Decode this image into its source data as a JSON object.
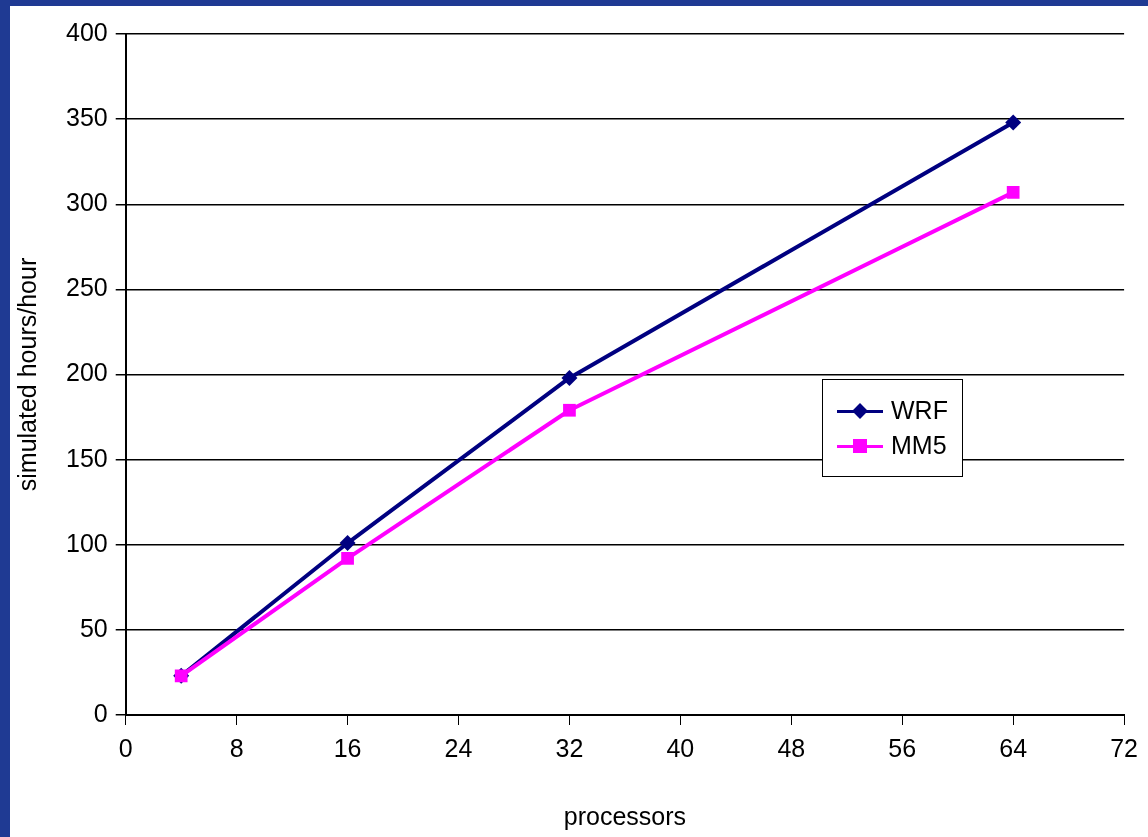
{
  "chart_data": {
    "type": "line",
    "xlabel": "processors",
    "ylabel": "simulated hours/hour",
    "xlim": [
      0,
      72
    ],
    "xticks": [
      0,
      8,
      16,
      24,
      32,
      40,
      48,
      56,
      64,
      72
    ],
    "ylim": [
      0,
      400
    ],
    "yticks": [
      0,
      50,
      100,
      150,
      200,
      250,
      300,
      350,
      400
    ],
    "grid": "y",
    "legend": "right",
    "line_style": "solid",
    "series": [
      {
        "name": "WRF",
        "color": "#000080",
        "marker": "diamond",
        "x": [
          4,
          16,
          32,
          64
        ],
        "values": [
          23,
          101,
          198,
          348
        ]
      },
      {
        "name": "MM5",
        "color": "#ff00ff",
        "marker": "square",
        "x": [
          4,
          16,
          32,
          64
        ],
        "values": [
          23,
          92,
          179,
          307
        ]
      }
    ]
  }
}
